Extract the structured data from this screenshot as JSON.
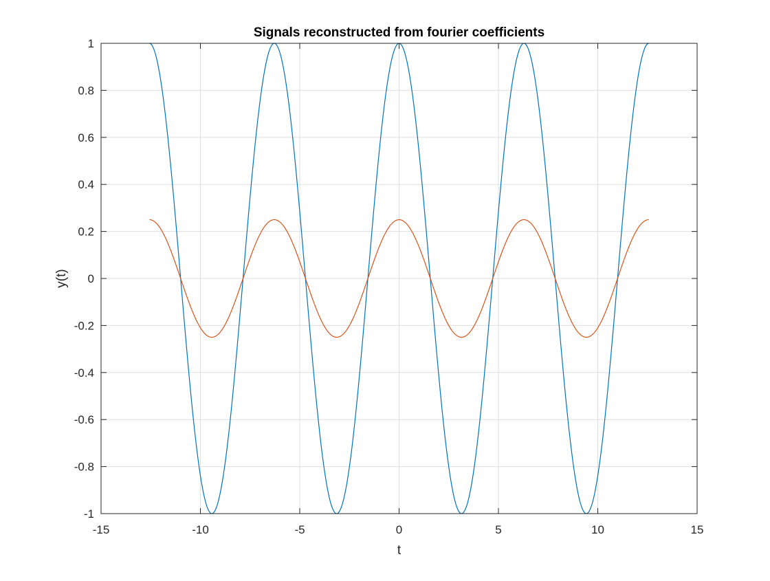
{
  "chart_data": {
    "type": "line",
    "title": "Signals reconstructed from fourier coefficients",
    "xlabel": "t",
    "ylabel": "y(t)",
    "xlim": [
      -15,
      15
    ],
    "ylim": [
      -1,
      1
    ],
    "xticks": [
      -15,
      -10,
      -5,
      0,
      5,
      10,
      15
    ],
    "yticks": [
      -1,
      -0.8,
      -0.6,
      -0.4,
      -0.2,
      0,
      0.2,
      0.4,
      0.6,
      0.8,
      1
    ],
    "xtick_labels": [
      "-15",
      "-10",
      "-5",
      "0",
      "5",
      "10",
      "15"
    ],
    "ytick_labels": [
      "-1",
      "-0.8",
      "-0.6",
      "-0.4",
      "-0.2",
      "0",
      "0.2",
      "0.4",
      "0.6",
      "0.8",
      "1"
    ],
    "grid": true,
    "series": [
      {
        "color": "#0072BD",
        "t_start": -12.566,
        "t_end": 12.566,
        "amplitude": 1,
        "angular_frequency": 1,
        "function": "cos",
        "sample_points": [
          {
            "t": -12.566,
            "y": 1
          },
          {
            "t": -9.425,
            "y": -1
          },
          {
            "t": -6.283,
            "y": 1
          },
          {
            "t": -3.142,
            "y": -1
          },
          {
            "t": 0,
            "y": 1
          },
          {
            "t": 3.142,
            "y": -1
          },
          {
            "t": 6.283,
            "y": 1
          },
          {
            "t": 9.425,
            "y": -1
          },
          {
            "t": 12.566,
            "y": 1
          }
        ]
      },
      {
        "color": "#D95319",
        "t_start": -12.566,
        "t_end": 12.566,
        "amplitude": 0.25,
        "angular_frequency": 1,
        "function": "cos",
        "sample_points": [
          {
            "t": -12.566,
            "y": 0.25
          },
          {
            "t": -9.425,
            "y": -0.25
          },
          {
            "t": -6.283,
            "y": 0.25
          },
          {
            "t": -3.142,
            "y": -0.25
          },
          {
            "t": 0,
            "y": 0.25
          },
          {
            "t": 3.142,
            "y": -0.25
          },
          {
            "t": 6.283,
            "y": 0.25
          },
          {
            "t": 9.425,
            "y": -0.25
          },
          {
            "t": 12.566,
            "y": 0.25
          }
        ]
      }
    ]
  }
}
